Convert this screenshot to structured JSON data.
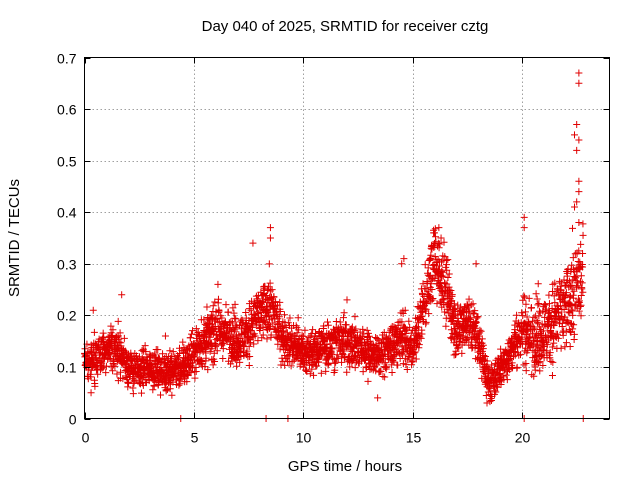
{
  "chart_data": {
    "type": "scatter",
    "title": "Day 040 of 2025, SRMTID for receiver cztg",
    "xlabel": "GPS time / hours",
    "ylabel": "SRMTID / TECUs",
    "xlim": [
      0,
      24
    ],
    "ylim": [
      0,
      0.7
    ],
    "xticks": [
      0,
      5,
      10,
      15,
      20
    ],
    "yticks": [
      0,
      0.1,
      0.2,
      0.3,
      0.4,
      0.5,
      0.6,
      0.7
    ],
    "xtick_labels": [
      "0",
      "5",
      "10",
      "15",
      "20"
    ],
    "ytick_labels": [
      "0",
      "0.1",
      "0.2",
      "0.3",
      "0.4",
      "0.5",
      "0.6",
      "0.7"
    ],
    "grid": true,
    "marker": "plus",
    "color": "#e00000",
    "series": [
      {
        "name": "SRMTID",
        "trend": [
          [
            0.0,
            0.11
          ],
          [
            0.5,
            0.12
          ],
          [
            1.0,
            0.13
          ],
          [
            1.5,
            0.14
          ],
          [
            2.0,
            0.1
          ],
          [
            2.5,
            0.09
          ],
          [
            3.0,
            0.1
          ],
          [
            3.5,
            0.09
          ],
          [
            4.0,
            0.09
          ],
          [
            4.5,
            0.1
          ],
          [
            5.0,
            0.13
          ],
          [
            5.5,
            0.15
          ],
          [
            6.0,
            0.17
          ],
          [
            6.5,
            0.17
          ],
          [
            7.0,
            0.15
          ],
          [
            7.5,
            0.17
          ],
          [
            8.0,
            0.2
          ],
          [
            8.5,
            0.22
          ],
          [
            9.0,
            0.16
          ],
          [
            9.5,
            0.14
          ],
          [
            10.0,
            0.13
          ],
          [
            10.5,
            0.13
          ],
          [
            11.0,
            0.14
          ],
          [
            11.5,
            0.15
          ],
          [
            12.0,
            0.15
          ],
          [
            12.5,
            0.14
          ],
          [
            13.0,
            0.13
          ],
          [
            13.5,
            0.12
          ],
          [
            14.0,
            0.14
          ],
          [
            14.5,
            0.16
          ],
          [
            15.0,
            0.13
          ],
          [
            15.5,
            0.22
          ],
          [
            16.0,
            0.31
          ],
          [
            16.5,
            0.25
          ],
          [
            17.0,
            0.17
          ],
          [
            17.5,
            0.19
          ],
          [
            18.0,
            0.16
          ],
          [
            18.5,
            0.06
          ],
          [
            19.0,
            0.1
          ],
          [
            19.5,
            0.13
          ],
          [
            20.0,
            0.17
          ],
          [
            20.5,
            0.16
          ],
          [
            21.0,
            0.17
          ],
          [
            21.5,
            0.19
          ],
          [
            22.0,
            0.21
          ],
          [
            22.5,
            0.26
          ],
          [
            22.8,
            0.27
          ]
        ],
        "outliers": [
          [
            4.4,
            0.0
          ],
          [
            8.3,
            0.0
          ],
          [
            9.3,
            0.0
          ],
          [
            20.1,
            0.0
          ],
          [
            22.8,
            0.0
          ],
          [
            22.6,
            0.67
          ],
          [
            22.6,
            0.65
          ],
          [
            22.5,
            0.57
          ],
          [
            22.4,
            0.55
          ],
          [
            22.6,
            0.54
          ],
          [
            22.5,
            0.52
          ],
          [
            22.6,
            0.46
          ],
          [
            22.6,
            0.44
          ],
          [
            22.5,
            0.42
          ],
          [
            22.4,
            0.41
          ],
          [
            22.6,
            0.38
          ],
          [
            20.1,
            0.39
          ],
          [
            20.1,
            0.37
          ],
          [
            8.5,
            0.37
          ],
          [
            8.5,
            0.35
          ],
          [
            7.7,
            0.34
          ],
          [
            16.2,
            0.37
          ],
          [
            16.0,
            0.36
          ],
          [
            16.3,
            0.35
          ],
          [
            14.6,
            0.31
          ],
          [
            14.5,
            0.3
          ],
          [
            17.9,
            0.3
          ],
          [
            12.0,
            0.23
          ],
          [
            6.1,
            0.26
          ],
          [
            1.7,
            0.24
          ],
          [
            0.4,
            0.21
          ],
          [
            3.7,
            0.16
          ],
          [
            13.4,
            0.04
          ],
          [
            0.3,
            0.05
          ],
          [
            18.4,
            0.03
          ]
        ]
      }
    ]
  }
}
